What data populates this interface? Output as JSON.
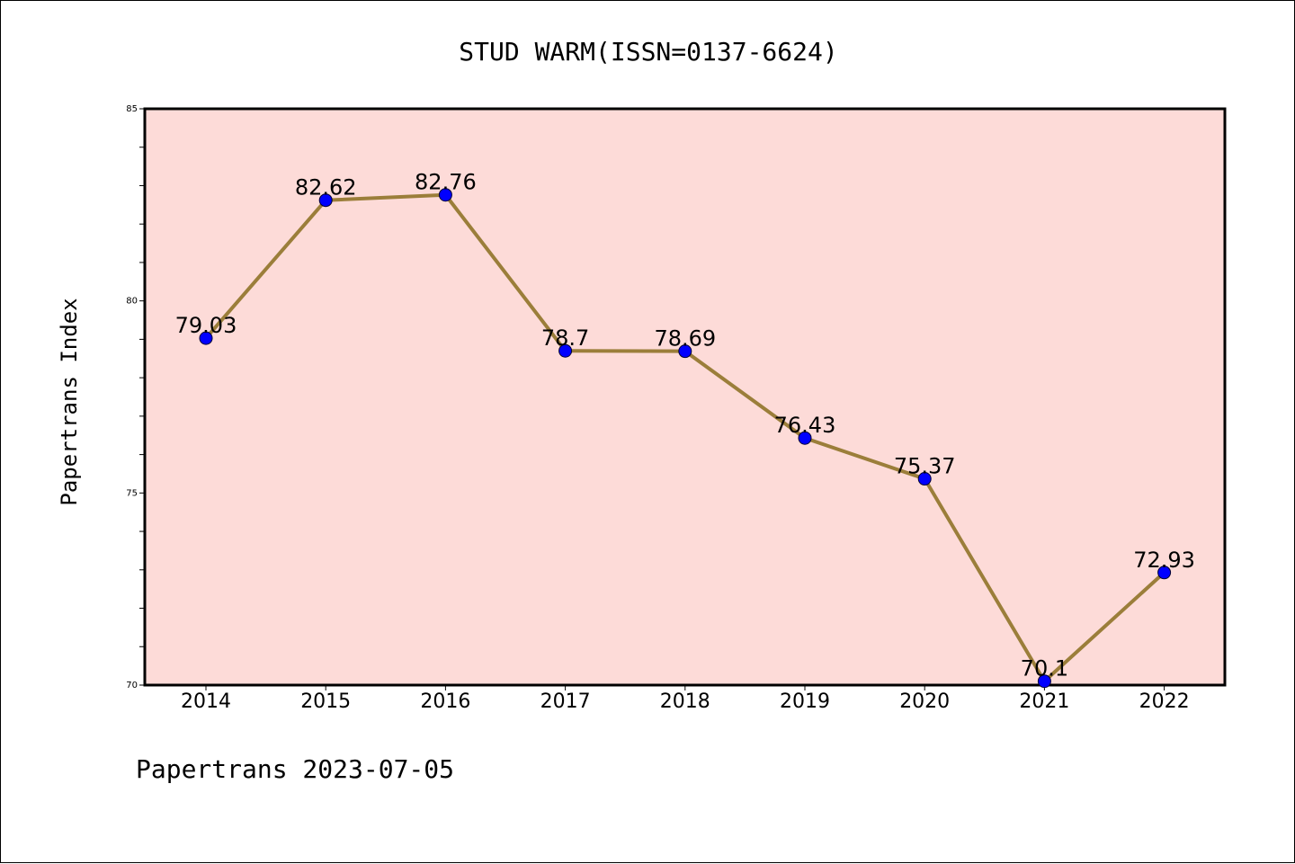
{
  "chart_data": {
    "type": "line",
    "title": "STUD WARM(ISSN=0137-6624)",
    "xlabel": "",
    "ylabel": "Papertrans Index",
    "categories": [
      "2014",
      "2015",
      "2016",
      "2017",
      "2018",
      "2019",
      "2020",
      "2021",
      "2022"
    ],
    "series": [
      {
        "values": [
          79.03,
          82.62,
          82.76,
          78.7,
          78.69,
          76.43,
          75.37,
          70.1,
          72.93
        ],
        "data_labels": [
          "79.03",
          "82.62",
          "82.76",
          "78.7",
          "78.69",
          "76.43",
          "75.37",
          "70.1",
          "72.93"
        ]
      }
    ],
    "ylim": [
      70,
      85
    ],
    "y_ticks": [
      "70",
      "75",
      "80",
      "85"
    ],
    "grid": false,
    "legend": "none"
  },
  "footer": "Papertrans 2023-07-05",
  "colors": {
    "plot_background": "#fddbd8",
    "line": "#9b7e3a",
    "marker": "#0000ff",
    "axis": "#000000"
  }
}
